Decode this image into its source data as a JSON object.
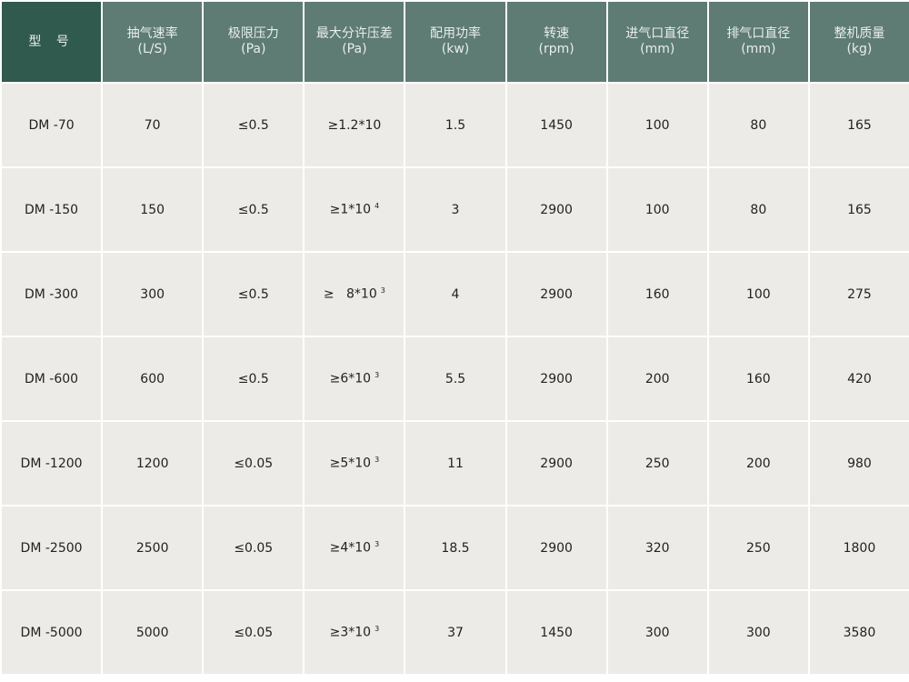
{
  "colors": {
    "header": "#5e7b74",
    "header_first": "#2f5a4d",
    "body": "#ecebe7"
  },
  "headers": [
    {
      "label": "型 号",
      "unit": ""
    },
    {
      "label": "抽气速率",
      "unit": "(L/S)"
    },
    {
      "label": "极限压力",
      "unit": "(Pa)"
    },
    {
      "label": "最大分许压差",
      "unit": "(Pa)"
    },
    {
      "label": "配用功率",
      "unit": "(kw)"
    },
    {
      "label": "转速",
      "unit": "(rpm)"
    },
    {
      "label": "进气口直径",
      "unit": "(mm)"
    },
    {
      "label": "排气口直径",
      "unit": "(mm)"
    },
    {
      "label": "整机质量",
      "unit": "(kg)"
    }
  ],
  "rows": [
    [
      {
        "t": "DM -70"
      },
      {
        "t": "70"
      },
      {
        "t": "≤0.5"
      },
      {
        "t": "≥1.2*10"
      },
      {
        "t": "1.5"
      },
      {
        "t": "1450"
      },
      {
        "t": "100"
      },
      {
        "t": "80"
      },
      {
        "t": "165"
      }
    ],
    [
      {
        "t": "DM -150"
      },
      {
        "t": "150"
      },
      {
        "t": "≤0.5"
      },
      {
        "t": "≥1*10",
        "sup": "4"
      },
      {
        "t": "3"
      },
      {
        "t": "2900"
      },
      {
        "t": "100"
      },
      {
        "t": "80"
      },
      {
        "t": "165"
      }
    ],
    [
      {
        "t": "DM -300"
      },
      {
        "t": "300"
      },
      {
        "t": "≤0.5"
      },
      {
        "t": "≥   8*10",
        "sup": "3"
      },
      {
        "t": "4"
      },
      {
        "t": "2900"
      },
      {
        "t": "160"
      },
      {
        "t": "100"
      },
      {
        "t": "275"
      }
    ],
    [
      {
        "t": "DM -600"
      },
      {
        "t": "600"
      },
      {
        "t": "≤0.5"
      },
      {
        "t": "≥6*10",
        "sup": "3"
      },
      {
        "t": "5.5"
      },
      {
        "t": "2900"
      },
      {
        "t": "200"
      },
      {
        "t": "160"
      },
      {
        "t": "420"
      }
    ],
    [
      {
        "t": "DM -1200"
      },
      {
        "t": "1200"
      },
      {
        "t": "≤0.05"
      },
      {
        "t": "≥5*10",
        "sup": "3"
      },
      {
        "t": "11"
      },
      {
        "t": "2900"
      },
      {
        "t": "250"
      },
      {
        "t": "200"
      },
      {
        "t": "980"
      }
    ],
    [
      {
        "t": "DM -2500"
      },
      {
        "t": "2500"
      },
      {
        "t": "≤0.05"
      },
      {
        "t": "≥4*10",
        "sup": "3"
      },
      {
        "t": "18.5"
      },
      {
        "t": "2900"
      },
      {
        "t": "320"
      },
      {
        "t": "250"
      },
      {
        "t": "1800"
      }
    ],
    [
      {
        "t": "DM -5000"
      },
      {
        "t": "5000"
      },
      {
        "t": "≤0.05"
      },
      {
        "t": "≥3*10",
        "sup": "3"
      },
      {
        "t": "37"
      },
      {
        "t": "1450"
      },
      {
        "t": "300"
      },
      {
        "t": "300"
      },
      {
        "t": "3580"
      }
    ]
  ]
}
